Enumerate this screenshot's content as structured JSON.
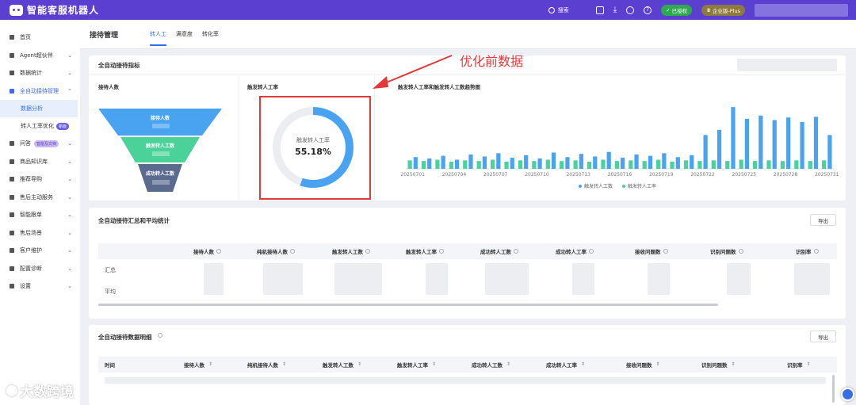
{
  "app": {
    "title": "智能客服机器人"
  },
  "topbar": {
    "search_label": "搜索",
    "authorized_label": "已授权",
    "edition_label": "企业版-Plus"
  },
  "sidebar": {
    "items": [
      {
        "label": "首页",
        "icon": "home-icon"
      },
      {
        "label": "Agent超伙伴",
        "icon": "agent-icon"
      },
      {
        "label": "数据统计",
        "icon": "stats-icon"
      },
      {
        "label": "全自动接待管理",
        "icon": "robot-icon",
        "active": true
      },
      {
        "label": "问答",
        "icon": "qa-icon",
        "tag": "智能及文档"
      },
      {
        "label": "商品知识库",
        "icon": "product-icon"
      },
      {
        "label": "推荐导购",
        "icon": "recommend-icon"
      },
      {
        "label": "售后主动服务",
        "icon": "aftersale-icon"
      },
      {
        "label": "智能跟单",
        "icon": "follow-icon"
      },
      {
        "label": "售后场景",
        "icon": "scene-icon"
      },
      {
        "label": "客户维护",
        "icon": "customer-icon"
      },
      {
        "label": "配置诊断",
        "icon": "diagnose-icon"
      },
      {
        "label": "设置",
        "icon": "settings-icon"
      }
    ],
    "subitems": [
      {
        "label": "数据分析",
        "active": true
      },
      {
        "label": "转人工率优化",
        "tag": "新版"
      }
    ]
  },
  "pagehead": {
    "title": "接待管理",
    "tabs": [
      "转人工",
      "满意度",
      "转化率"
    ]
  },
  "metrics_card": {
    "title": "全自动接待指标",
    "funnel_title": "接待人数",
    "funnel_levels": [
      "接待人数",
      "触发转人工数",
      "成功转人工数"
    ],
    "donut_title": "触发转人工率",
    "donut_label": "触发转人工率",
    "donut_value": "55.18%",
    "donut_fraction": 0.5518,
    "trend_title": "触发转人工率和触发转人工数趋势图",
    "annotation": "优化前数据"
  },
  "chart_data": {
    "type": "bar",
    "title": "触发转人工率和触发转人工数趋势图",
    "categories": [
      "20250701",
      "20250702",
      "20250703",
      "20250704",
      "20250705",
      "20250706",
      "20250707",
      "20250708",
      "20250709",
      "20250710",
      "20250711",
      "20250712",
      "20250713",
      "20250714",
      "20250715",
      "20250716",
      "20250717",
      "20250718",
      "20250719",
      "20250720",
      "20250721",
      "20250722",
      "20250723",
      "20250724",
      "20250725",
      "20250726",
      "20250727",
      "20250728",
      "20250729",
      "20250730",
      "20250731"
    ],
    "tick_labels": [
      "20250701",
      "20250704",
      "20250707",
      "20250710",
      "20250713",
      "20250716",
      "20250719",
      "20250722",
      "20250725",
      "20250728",
      "20250731"
    ],
    "series": [
      {
        "name": "触发转人工数",
        "color": "#4aa3f0",
        "values": [
          18,
          16,
          20,
          14,
          22,
          19,
          24,
          17,
          21,
          16,
          25,
          18,
          23,
          19,
          26,
          17,
          22,
          20,
          24,
          18,
          21,
          52,
          60,
          95,
          77,
          82,
          75,
          79,
          72,
          80,
          52
        ]
      },
      {
        "name": "触发转人工率",
        "color": "#4bd19a",
        "values": [
          13,
          12,
          14,
          11,
          13,
          12,
          14,
          11,
          13,
          12,
          14,
          12,
          13,
          11,
          14,
          12,
          13,
          12,
          14,
          11,
          13,
          12,
          13,
          12,
          14,
          12,
          13,
          12,
          13,
          12,
          13
        ]
      }
    ],
    "ylim": [
      0,
      100
    ],
    "legend": "bottom"
  },
  "summary_card": {
    "title": "全自动接待汇总和平均统计",
    "export_label": "导出",
    "columns": [
      "接待人数",
      "纯机接待人数",
      "触发转人工数",
      "触发转人工率",
      "成功转人工数",
      "成功转人工率",
      "接收问题数",
      "识别问题数",
      "识别率"
    ],
    "rows": [
      "汇总",
      "平均"
    ]
  },
  "detail_card": {
    "title": "全自动接待数据明细",
    "export_label": "导出",
    "columns": [
      "时间",
      "接待人数",
      "纯机接待人数",
      "触发转人工数",
      "触发转人工率",
      "成功转人工数",
      "成功转人工率",
      "接收问题数",
      "识别问题数",
      "识别率"
    ]
  },
  "watermark": "大数跨境"
}
